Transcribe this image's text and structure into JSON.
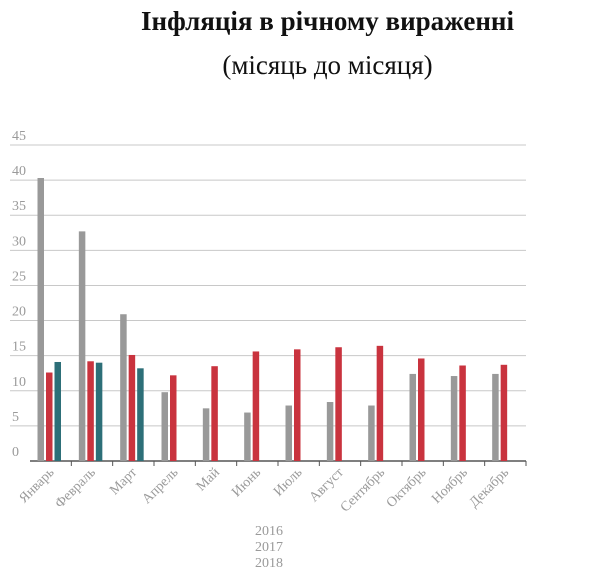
{
  "chart_data": {
    "type": "bar",
    "title": "Інфляція в річному вираженні",
    "subtitle": "(місяць до місяця)",
    "categories": [
      "Январь",
      "Февраль",
      "Март",
      "Апрель",
      "Май",
      "Июнь",
      "Июль",
      "Август",
      "Сентябрь",
      "Октябрь",
      "Ноябрь",
      "Декабрь"
    ],
    "series": [
      {
        "name": "2016",
        "color": "#999999",
        "values": [
          40.3,
          32.7,
          20.9,
          9.8,
          7.5,
          6.9,
          7.9,
          8.4,
          7.9,
          12.4,
          12.1,
          12.4
        ]
      },
      {
        "name": "2017",
        "color": "#c9333e",
        "values": [
          12.6,
          14.2,
          15.1,
          12.2,
          13.5,
          15.6,
          15.9,
          16.2,
          16.4,
          14.6,
          13.6,
          13.7
        ]
      },
      {
        "name": "2018",
        "color": "#2d6f78",
        "values": [
          14.1,
          14.0,
          13.2,
          null,
          null,
          null,
          null,
          null,
          null,
          null,
          null,
          null
        ]
      }
    ],
    "yticks": [
      0,
      5,
      10,
      15,
      20,
      25,
      30,
      35,
      40,
      45
    ],
    "ylim": [
      0,
      45
    ],
    "grid": true,
    "legend_position": "bottom"
  }
}
